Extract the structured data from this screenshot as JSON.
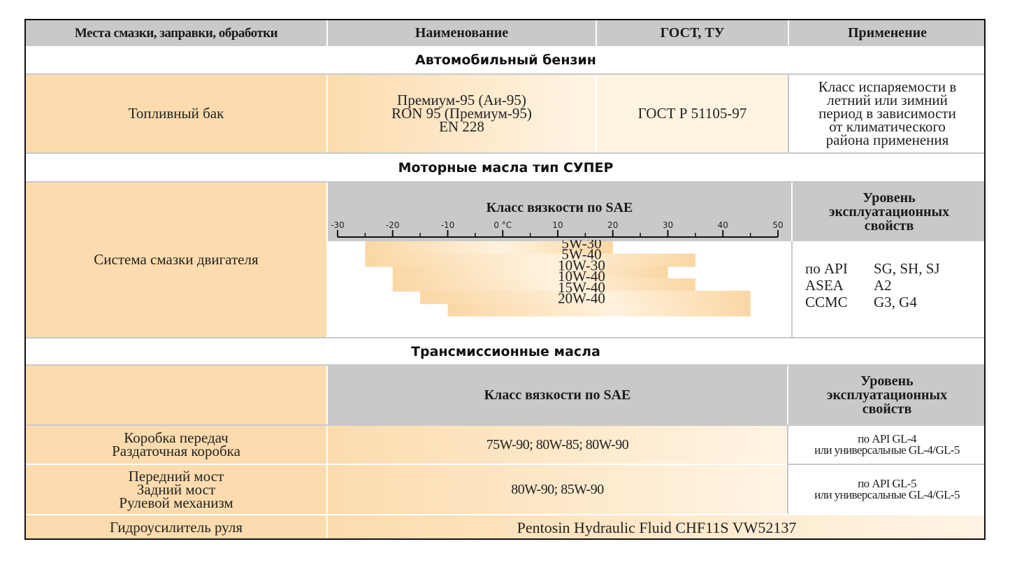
{
  "headers": {
    "col1": "Места смазки, заправки, обработки",
    "col2": "Наименование",
    "col3": "ГОСТ, ТУ",
    "col4": "Применение"
  },
  "gasoline": {
    "section": "Автомобильный бензин",
    "place": "Топливный бак",
    "names": [
      "Премиум-95 (Аи-95)",
      "RON 95 (Премиум-95)",
      "EN 228"
    ],
    "gost": "ГОСТ Р 51105-97",
    "application": [
      "Класс испаряемости в",
      "летний или зимний",
      "период в зависимости",
      "от климатического",
      "района применения"
    ]
  },
  "motor_oil": {
    "section": "Моторные масла тип СУПЕР",
    "place": "Система смазки двигателя",
    "viscosity_title": "Класс вязкости по SAE",
    "level_title": [
      "Уровень",
      "эксплуатационных",
      "свойств"
    ],
    "scale_labels": [
      "-30",
      "-20",
      "-10",
      "0 °C",
      "10",
      "20",
      "30",
      "40",
      "50"
    ],
    "standards": [
      {
        "org": "по API",
        "value": "SG, SH, SJ"
      },
      {
        "org": "ASEA",
        "value": "A2"
      },
      {
        "org": "CCMC",
        "value": "G3, G4"
      }
    ]
  },
  "chart_data": {
    "type": "bar",
    "title": "Класс вязкости по SAE",
    "unit": "°C",
    "xlim": [
      -30,
      50
    ],
    "bars": [
      {
        "label": "5W-30",
        "from": -25,
        "to": 20
      },
      {
        "label": "5W-40",
        "from": -25,
        "to": 35
      },
      {
        "label": "10W-30",
        "from": -20,
        "to": 30
      },
      {
        "label": "10W-40",
        "from": -20,
        "to": 35
      },
      {
        "label": "15W-40",
        "from": -15,
        "to": 45
      },
      {
        "label": "20W-40",
        "from": -10,
        "to": 45
      }
    ]
  },
  "transmission": {
    "section": "Трансмиссионные масла",
    "viscosity_title": "Класс вязкости по SAE",
    "level_title": [
      "Уровень",
      "эксплуатационных",
      "свойств"
    ],
    "rows": [
      {
        "places": [
          "Коробка передач",
          "Раздаточная коробка"
        ],
        "viscosity": "75W-90; 80W-85; 80W-90",
        "level": [
          "по API   GL-4",
          "или универсальные GL-4/GL-5"
        ]
      },
      {
        "places": [
          "Передний мост",
          "Задний мост",
          "Рулевой механизм"
        ],
        "viscosity": "80W-90; 85W-90",
        "level": [
          "по API   GL-5",
          "или универсальные GL-4/GL-5"
        ]
      }
    ]
  },
  "power_steering": {
    "place": "Гидроусилитель руля",
    "fluid": "Pentosin Hydraulic Fluid CHF11S VW52137"
  }
}
